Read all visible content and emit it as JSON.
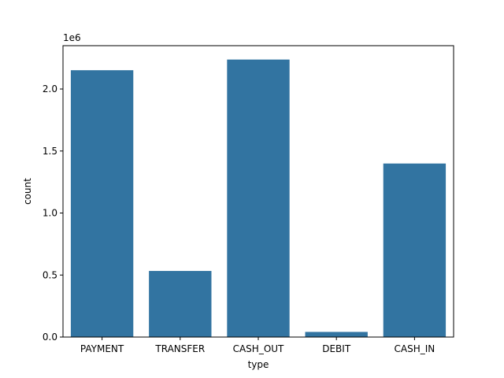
{
  "chart_data": {
    "type": "bar",
    "categories": [
      "PAYMENT",
      "TRANSFER",
      "CASH_OUT",
      "DEBIT",
      "CASH_IN"
    ],
    "values": [
      2151495,
      532909,
      2237500,
      41432,
      1399284
    ],
    "xlabel": "type",
    "ylabel": "count",
    "y_offset_label": "1e6",
    "y_scale": 1000000,
    "ylim": [
      0,
      2349375
    ],
    "yticks": [
      0,
      500000,
      1000000,
      1500000,
      2000000
    ],
    "ytick_labels": [
      "0.0",
      "0.5",
      "1.0",
      "1.5",
      "2.0"
    ],
    "bar_color": "#3274a1",
    "grid": false,
    "legend": "none"
  }
}
